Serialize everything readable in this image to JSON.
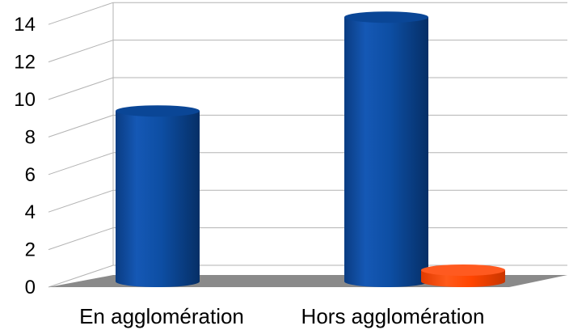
{
  "chart_data": {
    "type": "bar",
    "categories": [
      "En agglomération",
      "Hors agglomération"
    ],
    "series": [
      {
        "values": [
          9,
          14
        ],
        "color": "#0B4A9C"
      },
      {
        "values": [
          0,
          1
        ],
        "color": "#FF4500"
      }
    ],
    "ylim": [
      0,
      14
    ],
    "y_ticks": [
      "0",
      "2",
      "4",
      "6",
      "8",
      "10",
      "12",
      "14"
    ],
    "grid": true,
    "style": "3d-cylinder",
    "floor_color": "#8a8a8a"
  }
}
